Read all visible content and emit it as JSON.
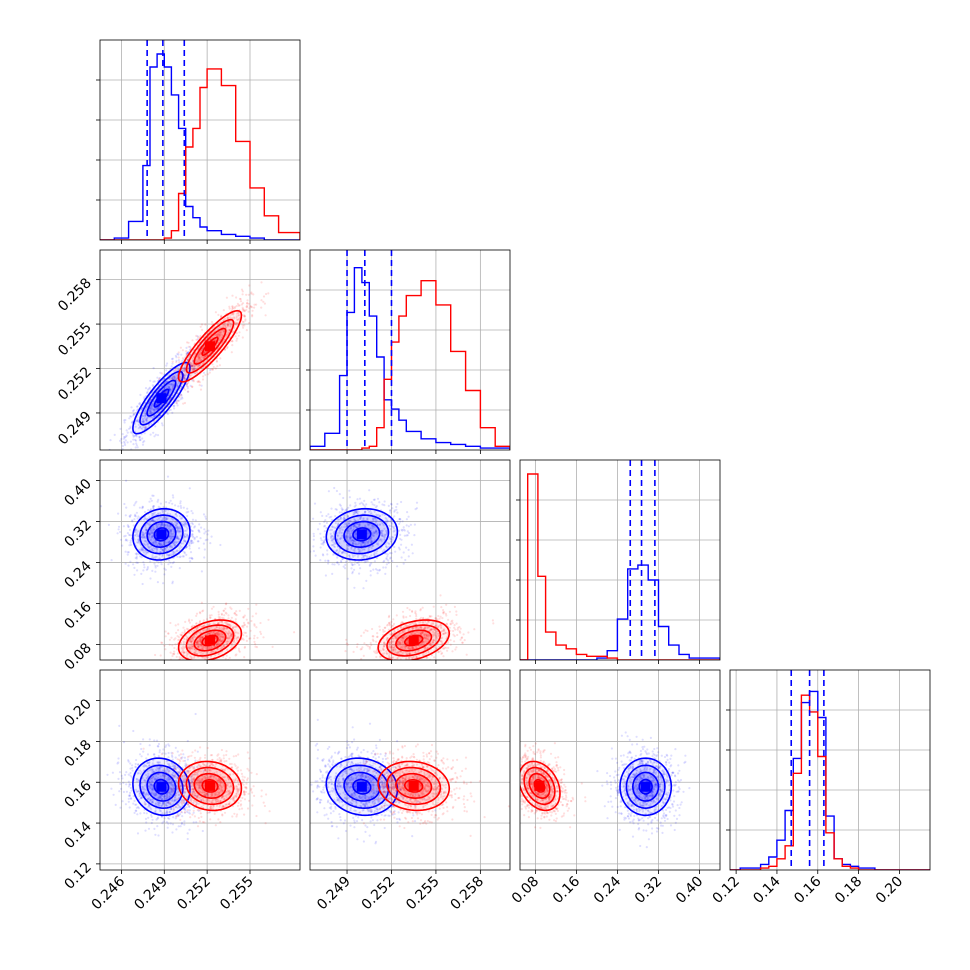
{
  "chart_data": {
    "type": "corner",
    "colors": {
      "blue": "#0000ff",
      "red": "#ff0000",
      "grid": "#b0b0b0",
      "frame": "#000000"
    },
    "grid": true,
    "params": [
      {
        "range": [
          0.2445,
          0.2585
        ],
        "ticks": [
          "0.246",
          "0.249",
          "0.252",
          "0.255"
        ]
      },
      {
        "range": [
          0.2465,
          0.26
        ],
        "ticks": [
          "0.249",
          "0.252",
          "0.255",
          "0.258"
        ]
      },
      {
        "range": [
          0.05,
          0.44
        ],
        "ticks": [
          "0.08",
          "0.16",
          "0.24",
          "0.32",
          "0.40"
        ]
      },
      {
        "range": [
          0.117,
          0.215
        ],
        "ticks": [
          "0.12",
          "0.14",
          "0.16",
          "0.18",
          "0.20"
        ]
      }
    ],
    "series": [
      {
        "color": "blue",
        "mean": [
          0.2488,
          0.25,
          0.295,
          0.1578
        ],
        "sigma": [
          0.001,
          0.0012,
          0.025,
          0.007
        ],
        "quantiles": [
          [
            0.2478,
            0.2489,
            0.2504
          ],
          [
            0.249,
            0.2502,
            0.252
          ],
          [
            0.265,
            0.287,
            0.313
          ],
          [
            0.147,
            0.156,
            0.163
          ]
        ]
      },
      {
        "color": "red",
        "mean": [
          0.2522,
          0.2535,
          0.088,
          0.1582
        ],
        "sigma": [
          0.0011,
          0.0012,
          0.02,
          0.006
        ]
      }
    ],
    "histograms": [
      {
        "bins": [
          0.2445,
          0.2455,
          0.2465,
          0.2475,
          0.248,
          0.2485,
          0.249,
          0.2495,
          0.25,
          0.2505,
          0.251,
          0.2515,
          0.252,
          0.253,
          0.254,
          0.255,
          0.256,
          0.257,
          0.2585
        ],
        "blue": [
          0.0,
          0.01,
          0.1,
          0.4,
          0.93,
          1.0,
          0.93,
          0.78,
          0.6,
          0.18,
          0.12,
          0.07,
          0.05,
          0.03,
          0.02,
          0.01,
          0.0,
          0.0
        ],
        "red": [
          0.0,
          0.0,
          0.0,
          0.0,
          0.0,
          0.0,
          0.01,
          0.05,
          0.25,
          0.5,
          0.6,
          0.82,
          0.92,
          0.83,
          0.53,
          0.28,
          0.13,
          0.04
        ]
      },
      {
        "bins": [
          0.2465,
          0.2475,
          0.2485,
          0.249,
          0.2495,
          0.25,
          0.2505,
          0.251,
          0.2515,
          0.252,
          0.2525,
          0.253,
          0.254,
          0.255,
          0.256,
          0.257,
          0.258,
          0.259,
          0.26
        ],
        "blue": [
          0.02,
          0.09,
          0.4,
          0.74,
          0.98,
          0.9,
          0.72,
          0.5,
          0.27,
          0.22,
          0.16,
          0.1,
          0.06,
          0.04,
          0.03,
          0.02,
          0.01,
          0.01
        ],
        "red": [
          0.0,
          0.0,
          0.0,
          0.0,
          0.0,
          0.01,
          0.02,
          0.12,
          0.38,
          0.58,
          0.72,
          0.83,
          0.91,
          0.78,
          0.53,
          0.32,
          0.12,
          0.02
        ]
      },
      {
        "bins": [
          0.05,
          0.065,
          0.085,
          0.1,
          0.12,
          0.14,
          0.16,
          0.18,
          0.2,
          0.22,
          0.24,
          0.26,
          0.28,
          0.3,
          0.32,
          0.34,
          0.36,
          0.38,
          0.44
        ],
        "blue": [
          0.0,
          0.0,
          0.0,
          0.0,
          0.0,
          0.0,
          0.0,
          0.0,
          0.01,
          0.05,
          0.22,
          0.49,
          0.51,
          0.43,
          0.18,
          0.08,
          0.03,
          0.01
        ],
        "red": [
          0.0,
          1.0,
          0.45,
          0.15,
          0.08,
          0.06,
          0.03,
          0.02,
          0.02,
          0.01,
          0.0,
          0.0,
          0.0,
          0.0,
          0.0,
          0.0,
          0.0,
          0.0
        ]
      },
      {
        "bins": [
          0.117,
          0.122,
          0.128,
          0.132,
          0.136,
          0.14,
          0.144,
          0.148,
          0.152,
          0.156,
          0.16,
          0.164,
          0.168,
          0.172,
          0.176,
          0.18,
          0.188,
          0.2,
          0.215
        ],
        "blue": [
          0.0,
          0.01,
          0.01,
          0.03,
          0.07,
          0.16,
          0.32,
          0.6,
          0.9,
          0.96,
          0.82,
          0.29,
          0.06,
          0.03,
          0.02,
          0.01,
          0.0,
          0.0
        ],
        "red": [
          0.0,
          0.0,
          0.0,
          0.01,
          0.02,
          0.06,
          0.13,
          0.52,
          0.94,
          0.85,
          0.61,
          0.2,
          0.06,
          0.02,
          0.01,
          0.0,
          0.0,
          0.0
        ]
      }
    ],
    "contours": [
      {
        "row": 1,
        "col": 0,
        "color": "blue",
        "cx": 0.2488,
        "cy": 0.25,
        "sx": 0.001,
        "sy": 0.0012,
        "rho": 0.85
      },
      {
        "row": 1,
        "col": 0,
        "color": "red",
        "cx": 0.2522,
        "cy": 0.2535,
        "sx": 0.0011,
        "sy": 0.0012,
        "rho": 0.87
      },
      {
        "row": 2,
        "col": 0,
        "color": "blue",
        "cx": 0.2488,
        "cy": 0.295,
        "sx": 0.001,
        "sy": 0.025,
        "rho": 0.1
      },
      {
        "row": 2,
        "col": 0,
        "color": "red",
        "cx": 0.2522,
        "cy": 0.088,
        "sx": 0.0011,
        "sy": 0.02,
        "rho": 0.35
      },
      {
        "row": 2,
        "col": 1,
        "color": "blue",
        "cx": 0.25,
        "cy": 0.295,
        "sx": 0.0012,
        "sy": 0.025,
        "rho": 0.1
      },
      {
        "row": 2,
        "col": 1,
        "color": "red",
        "cx": 0.2535,
        "cy": 0.088,
        "sx": 0.0012,
        "sy": 0.02,
        "rho": 0.35
      },
      {
        "row": 3,
        "col": 0,
        "color": "blue",
        "cx": 0.2488,
        "cy": 0.1578,
        "sx": 0.001,
        "sy": 0.007,
        "rho": -0.1
      },
      {
        "row": 3,
        "col": 0,
        "color": "red",
        "cx": 0.2522,
        "cy": 0.1582,
        "sx": 0.0011,
        "sy": 0.006,
        "rho": -0.1
      },
      {
        "row": 3,
        "col": 1,
        "color": "blue",
        "cx": 0.25,
        "cy": 0.1578,
        "sx": 0.0012,
        "sy": 0.007,
        "rho": -0.1
      },
      {
        "row": 3,
        "col": 1,
        "color": "red",
        "cx": 0.2535,
        "cy": 0.1582,
        "sx": 0.0012,
        "sy": 0.006,
        "rho": -0.1
      },
      {
        "row": 3,
        "col": 2,
        "color": "blue",
        "cx": 0.295,
        "cy": 0.1578,
        "sx": 0.025,
        "sy": 0.007,
        "rho": 0.0
      },
      {
        "row": 3,
        "col": 2,
        "color": "red",
        "cx": 0.088,
        "cy": 0.1582,
        "sx": 0.02,
        "sy": 0.006,
        "rho": -0.3
      }
    ],
    "contour_levels_sigma": [
      0.5,
      1.0,
      1.5,
      2.0
    ]
  }
}
